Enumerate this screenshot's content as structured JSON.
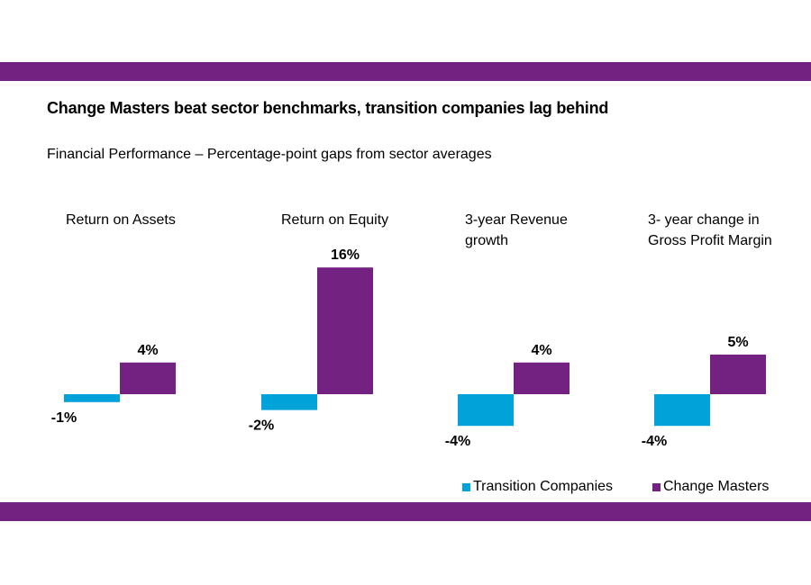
{
  "colors": {
    "band": "#742281",
    "transition": "#00A3D9",
    "change_masters": "#742281"
  },
  "chart_data": {
    "type": "bar",
    "title": "Change Masters beat sector benchmarks, transition companies lag behind",
    "subtitle": "Financial Performance – Percentage-point gaps from sector averages",
    "categories": [
      "Return on Assets",
      "Return on Equity",
      "3-year Revenue growth",
      "3- year change in Gross Profit Margin"
    ],
    "panel_titles": [
      [
        "Return on Assets"
      ],
      [
        "Return on Equity"
      ],
      [
        "3-year Revenue",
        "growth"
      ],
      [
        "3- year change in",
        "Gross Profit Margin"
      ]
    ],
    "series": [
      {
        "name": "Transition Companies",
        "values": [
          -1,
          -2,
          -4,
          -4
        ],
        "labels": [
          "-1%",
          "-2%",
          "-4%",
          "-4%"
        ]
      },
      {
        "name": "Change Masters",
        "values": [
          4,
          16,
          4,
          5
        ],
        "labels": [
          "4%",
          "16%",
          "4%",
          "5%"
        ]
      }
    ],
    "ylim": [
      -4,
      16
    ],
    "legend_position": "bottom-right",
    "grid": false
  }
}
